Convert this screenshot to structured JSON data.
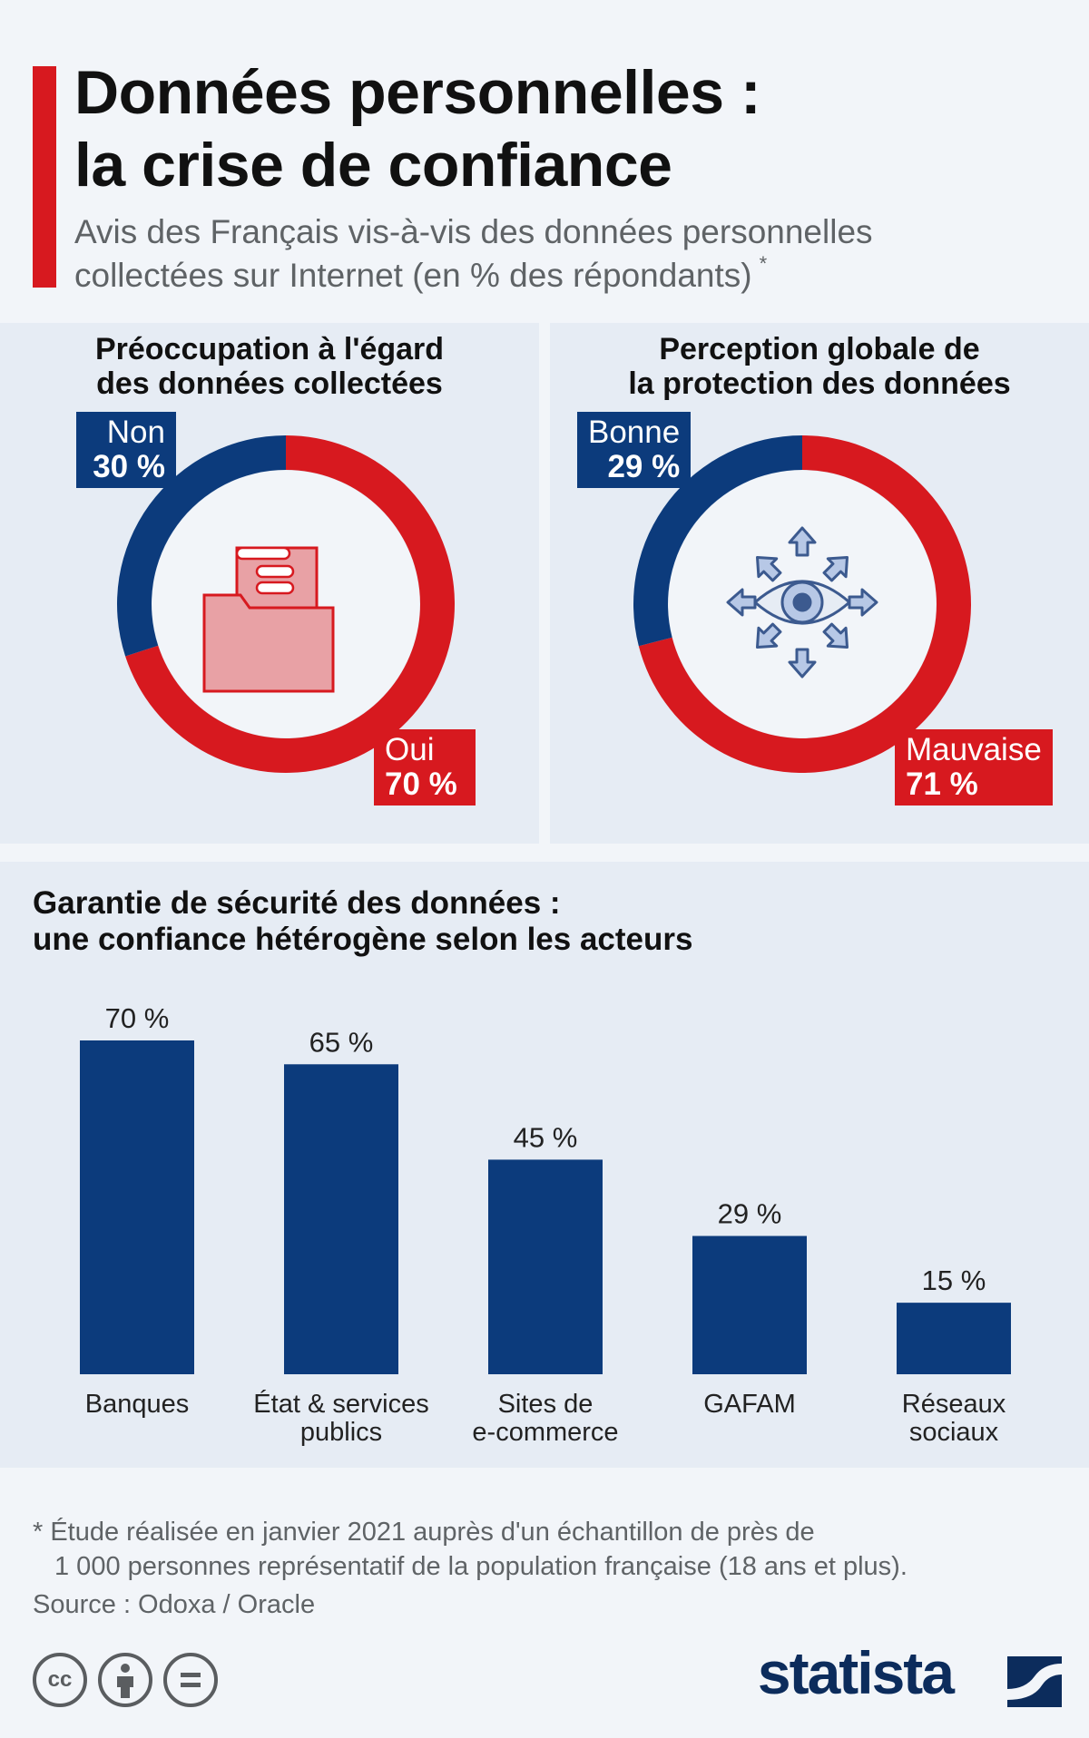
{
  "header": {
    "title_line1": "Données personnelles :",
    "title_line2": "la crise de confiance",
    "subtitle_line1": "Avis des Français vis-à-vis des données personnelles",
    "subtitle_line2": "collectées sur Internet (en % des répondants)",
    "subtitle_marker": "*"
  },
  "colors": {
    "accent_red": "#d7191f",
    "accent_blue": "#0c3b7c",
    "panel_bg": "#e6ecf4"
  },
  "chart_data": [
    {
      "type": "pie",
      "title": "Préoccupation à l'égard des données collectées",
      "title_line1": "Préoccupation à l'égard",
      "title_line2": "des données collectées",
      "center_icon": "folder-document-icon",
      "slices": [
        {
          "label": "Non",
          "value": 30,
          "display": "30 %",
          "color": "#0c3b7c"
        },
        {
          "label": "Oui",
          "value": 70,
          "display": "70 %",
          "color": "#d7191f"
        }
      ]
    },
    {
      "type": "pie",
      "title": "Perception globale de la protection des données",
      "title_line1": "Perception globale de",
      "title_line2": "la protection des données",
      "center_icon": "eye-surveillance-icon",
      "slices": [
        {
          "label": "Bonne",
          "value": 29,
          "display": "29 %",
          "color": "#0c3b7c"
        },
        {
          "label": "Mauvaise",
          "value": 71,
          "display": "71 %",
          "color": "#d7191f"
        }
      ]
    },
    {
      "type": "bar",
      "title": "Garantie de sécurité des données : une confiance hétérogène selon les acteurs",
      "title_line1": "Garantie de sécurité des données :",
      "title_line2": "une confiance hétérogène selon les acteurs",
      "categories": [
        [
          "Banques"
        ],
        [
          "État & services",
          "publics"
        ],
        [
          "Sites de",
          "e-commerce"
        ],
        [
          "GAFAM"
        ],
        [
          "Réseaux",
          "sociaux"
        ]
      ],
      "values": [
        70,
        65,
        45,
        29,
        15
      ],
      "value_labels": [
        "70 %",
        "65 %",
        "45 %",
        "29 %",
        "15 %"
      ],
      "ylim": [
        0,
        70
      ],
      "bar_color": "#0c3b7c",
      "grid": false
    }
  ],
  "footer": {
    "note_line1": "* Étude réalisée en janvier 2021 auprès d'un échantillon de près de",
    "note_line2": "1 000 personnes représentatif de la population française (18 ans et plus).",
    "source": "Source : Odoxa / Oracle",
    "license_icons": [
      "creative-commons-icon",
      "attribution-icon",
      "no-derivatives-icon"
    ],
    "brand": "statista",
    "cc_text": "cc"
  }
}
